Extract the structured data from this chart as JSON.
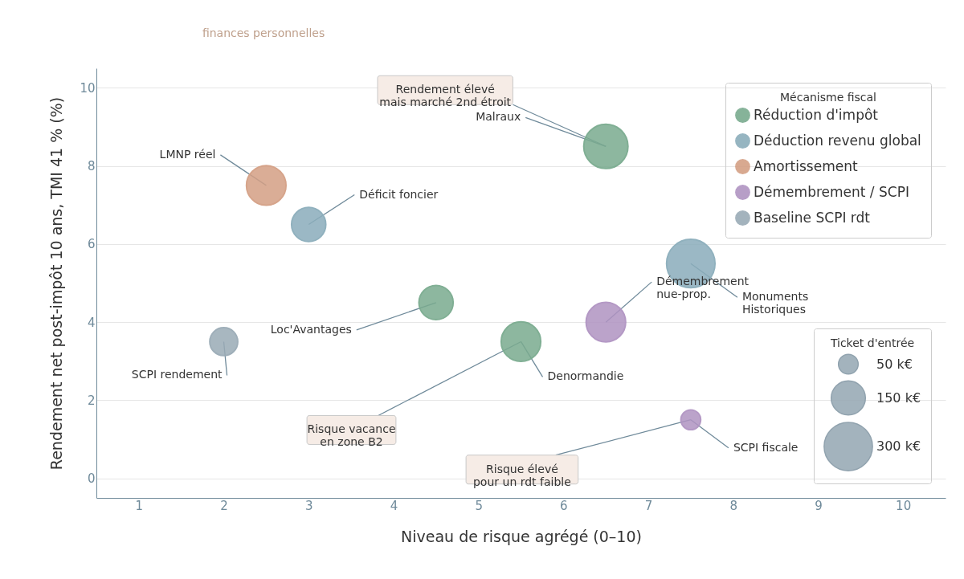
{
  "chart_data": {
    "type": "bubble",
    "subtitle": "finances personnelles",
    "xlabel": "Niveau de risque agrégé (0–10)",
    "ylabel": "Rendement net post-impôt 10 ans, TMI 41 % (%)",
    "legend_title": [
      "Mécanisme fiscal",
      "Ticket d'entrée"
    ],
    "xlim": [
      0.5,
      10.5
    ],
    "xticks": [
      1,
      2,
      3,
      4,
      5,
      6,
      7,
      8,
      9,
      10
    ],
    "ylim": [
      -0.5,
      10.5
    ],
    "yticks": [
      0,
      2,
      4,
      6,
      8,
      10
    ],
    "grid": "y",
    "legend": "top right",
    "size_legend": [
      {
        "value": 50,
        "label": "50 k€"
      },
      {
        "value": 150,
        "label": "150 k€"
      },
      {
        "value": 300,
        "label": "300 k€"
      }
    ],
    "series": [
      {
        "name": "Réduction d'impôt",
        "color": "#7aab8f",
        "x": [
          6.5,
          4.5,
          5.5
        ],
        "values": [
          8.5,
          4.5,
          3.5
        ],
        "sizes": [
          250,
          150,
          200
        ]
      },
      {
        "name": "Déduction revenu global",
        "color": "#8badbb",
        "x": [
          3,
          7.5
        ],
        "values": [
          6.5,
          5.5
        ],
        "sizes": [
          150,
          300
        ]
      },
      {
        "name": "Amortissement",
        "color": "#d4a085",
        "x": [
          2.5
        ],
        "values": [
          7.5
        ],
        "sizes": [
          200
        ]
      },
      {
        "name": "Démembrement / SCPI",
        "color": "#b094c2",
        "x": [
          6.5,
          7.5
        ],
        "values": [
          4,
          1.5
        ],
        "sizes": [
          200,
          50
        ]
      },
      {
        "name": "Baseline SCPI rdt",
        "color": "#9aabb6",
        "x": [
          2
        ],
        "values": [
          3.5
        ],
        "sizes": [
          100
        ]
      }
    ],
    "annotations": [
      {
        "text": "Malraux",
        "x": 6.5,
        "y": 8.5
      },
      {
        "text": "Loc'Avantages",
        "x": 4.5,
        "y": 4.5
      },
      {
        "text": "Denormandie",
        "x": 5.5,
        "y": 3.5
      },
      {
        "text": "Déficit foncier",
        "x": 3,
        "y": 6.5
      },
      {
        "text": "Monuments\nHistoriques",
        "x": 7.5,
        "y": 5.5
      },
      {
        "text": "LMNP réel",
        "x": 2.5,
        "y": 7.5
      },
      {
        "text": "Démembrement\nnue-prop.",
        "x": 6.5,
        "y": 4
      },
      {
        "text": "SCPI fiscale",
        "x": 7.5,
        "y": 1.5
      },
      {
        "text": "SCPI rendement",
        "x": 2,
        "y": 3.5
      },
      {
        "text": "Rendement élevé\nmais marché 2nd étroit",
        "x": 6.5,
        "y": 8.5
      },
      {
        "text": "Risque vacance\nen zone B2",
        "x": 5.5,
        "y": 3.5
      },
      {
        "text": "Risque élevé\npour un rdt faible",
        "x": 7.5,
        "y": 1.5
      }
    ]
  }
}
